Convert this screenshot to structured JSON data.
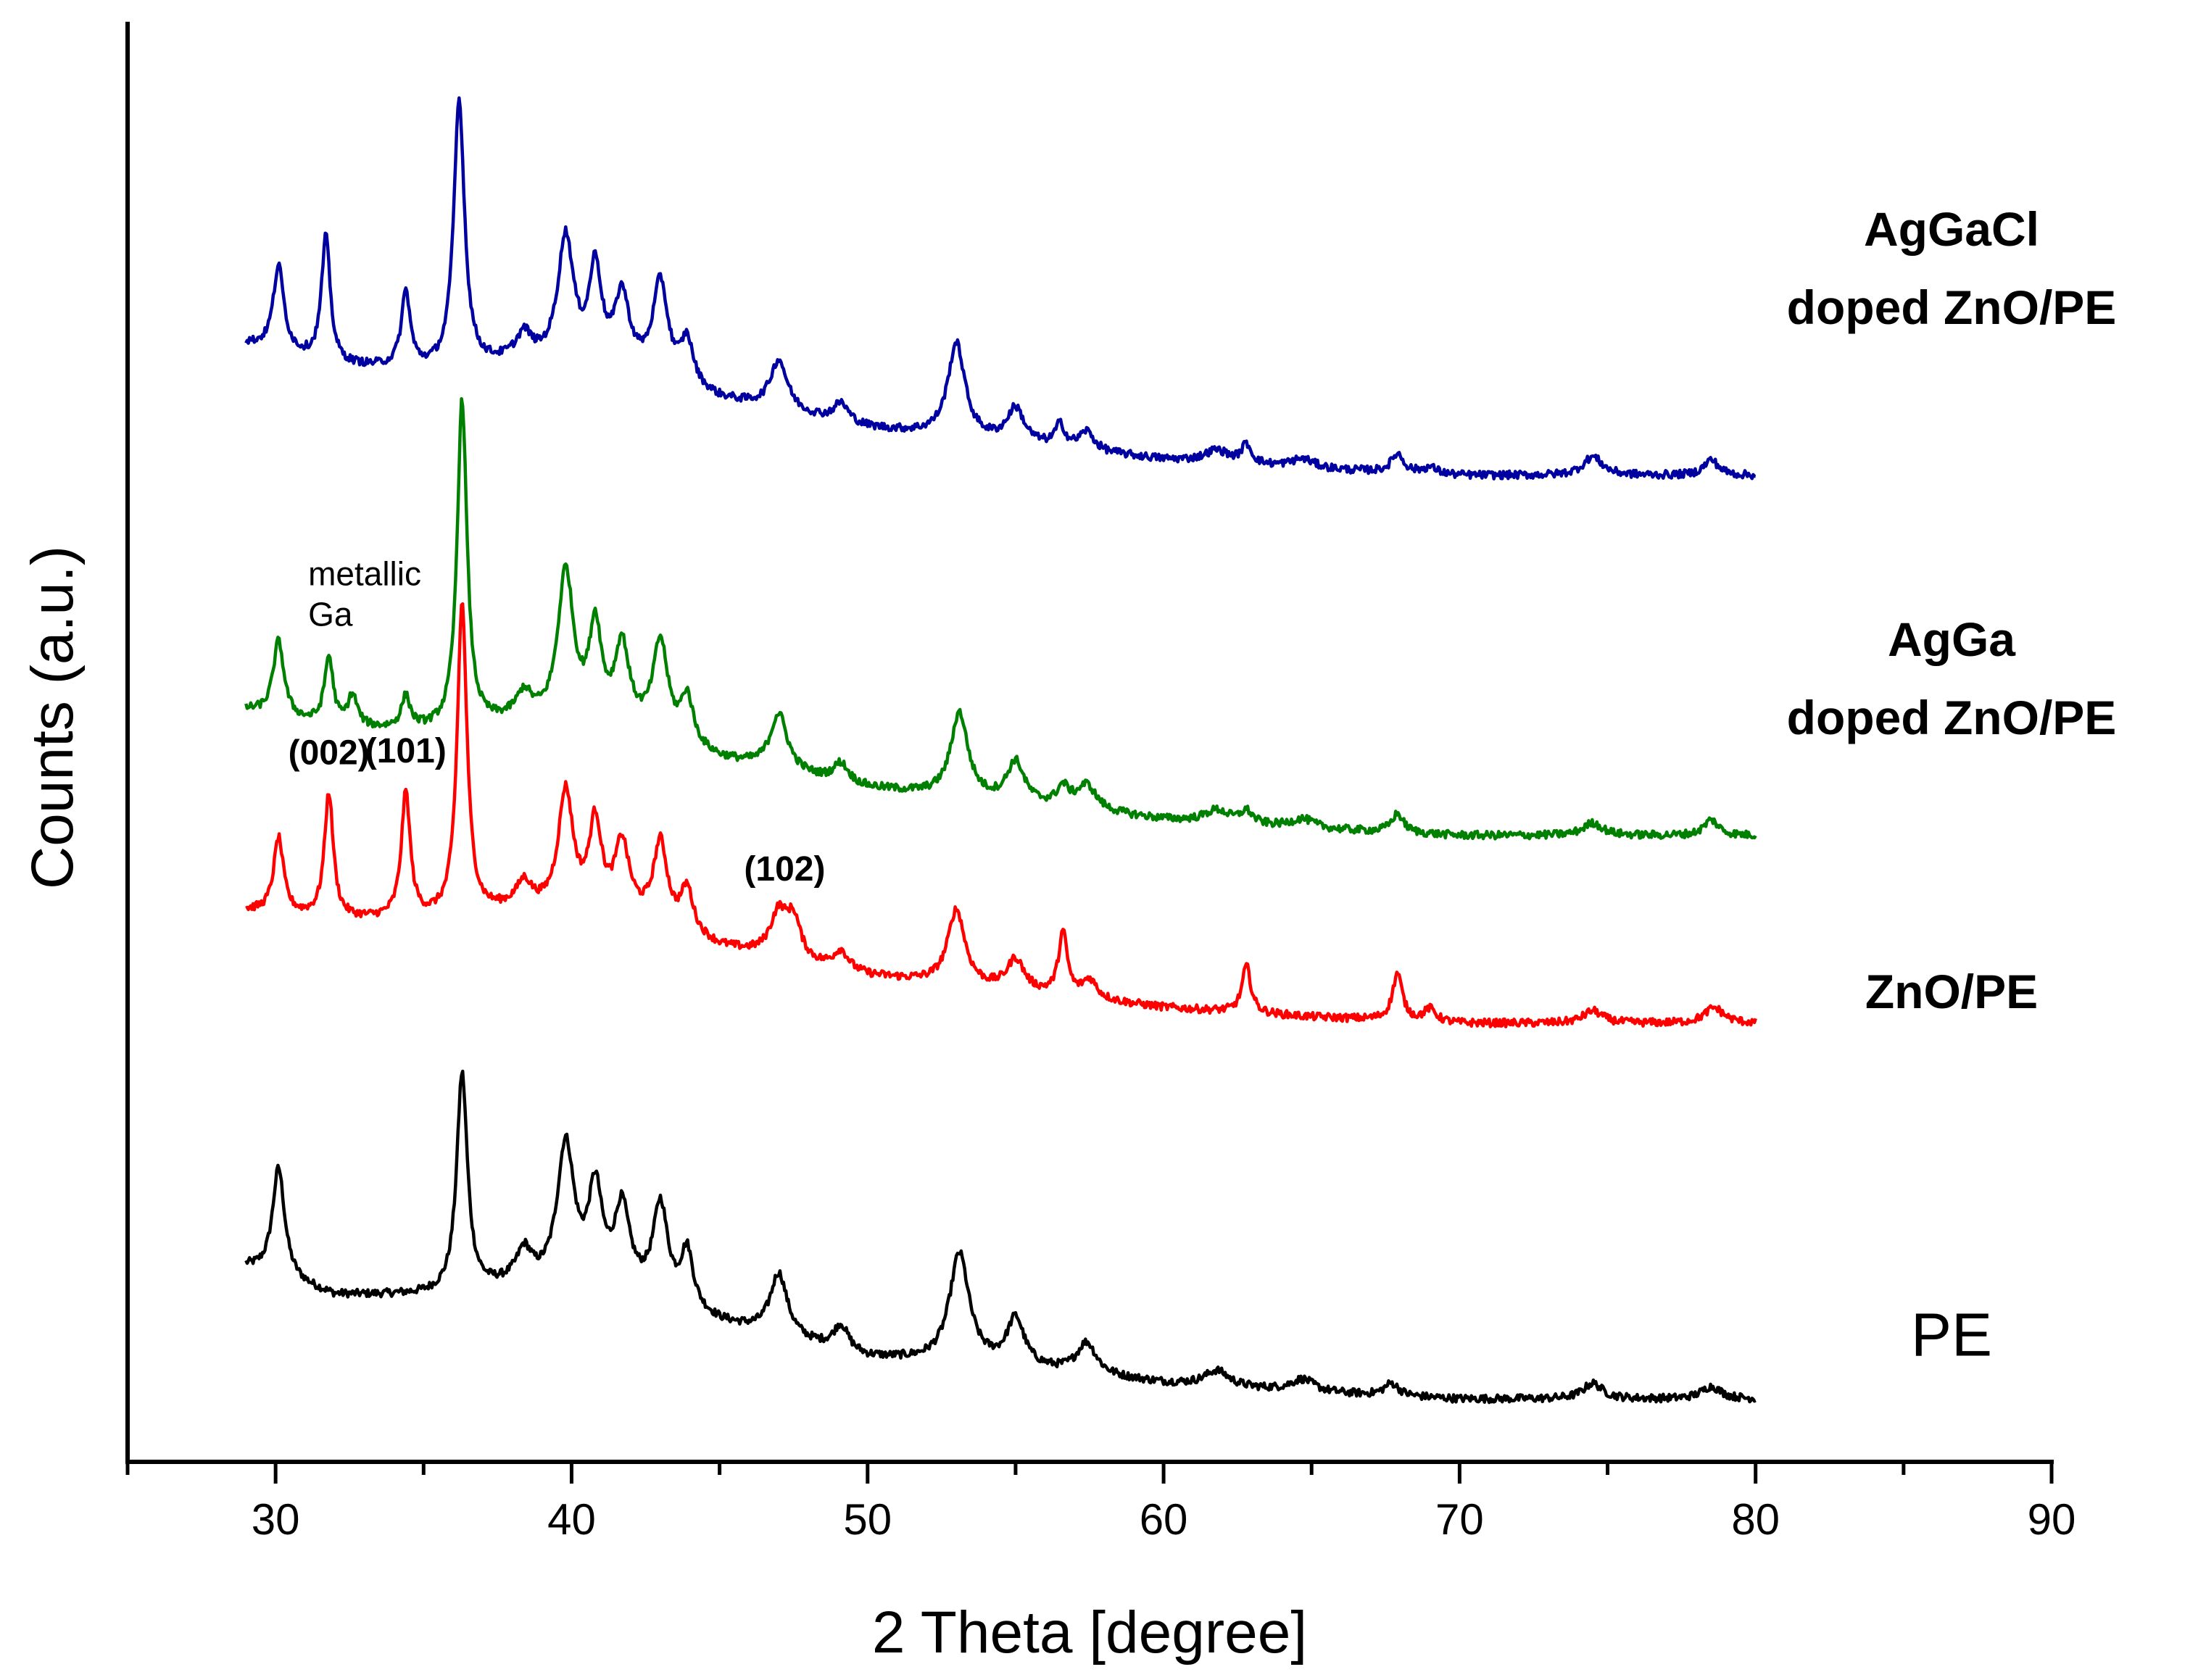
{
  "chart_data": {
    "type": "line",
    "title": "",
    "xlabel": "2 Theta [degree]",
    "ylabel": "Counts (a.u.)",
    "xlim": [
      25,
      90
    ],
    "ylim": [
      0,
      4.6
    ],
    "x_ticks": [
      30,
      40,
      50,
      60,
      70,
      80,
      90
    ],
    "x_tick_labels": [
      "30",
      "40",
      "50",
      "60",
      "70",
      "80",
      "90"
    ],
    "y_ticks_shown": false,
    "grid": false,
    "x_range_of_data": [
      29,
      80
    ],
    "series": [
      {
        "name": "PE",
        "label_lines": [
          "PE"
        ],
        "label_bold": false,
        "color": "#000000",
        "offset": 0.2,
        "baseline": [
          [
            29,
            0.42
          ],
          [
            32,
            0.33
          ],
          [
            36,
            0.33
          ],
          [
            38,
            0.36
          ],
          [
            42,
            0.34
          ],
          [
            45,
            0.24
          ],
          [
            50,
            0.13
          ],
          [
            55,
            0.1
          ],
          [
            60,
            0.05
          ],
          [
            65,
            0.02
          ],
          [
            70,
            0.0
          ],
          [
            75,
            0.0
          ],
          [
            80,
            0.0
          ]
        ],
        "peaks": [
          [
            30.1,
            0.35,
            0.25
          ],
          [
            36.3,
            0.7,
            0.22
          ],
          [
            38.4,
            0.1,
            0.3
          ],
          [
            39.8,
            0.45,
            0.35
          ],
          [
            40.8,
            0.3,
            0.28
          ],
          [
            41.7,
            0.25,
            0.3
          ],
          [
            43.0,
            0.3,
            0.3
          ],
          [
            43.9,
            0.18,
            0.25
          ],
          [
            47.0,
            0.2,
            0.35
          ],
          [
            49.1,
            0.08,
            0.3
          ],
          [
            53.1,
            0.35,
            0.4
          ],
          [
            55.0,
            0.15,
            0.35
          ],
          [
            57.4,
            0.1,
            0.4
          ],
          [
            61.8,
            0.05,
            0.5
          ],
          [
            64.7,
            0.04,
            0.5
          ],
          [
            67.7,
            0.04,
            0.3
          ],
          [
            74.5,
            0.05,
            0.4
          ],
          [
            78.5,
            0.04,
            0.4
          ]
        ]
      },
      {
        "name": "ZnO/PE",
        "label_lines": [
          "ZnO/PE"
        ],
        "label_bold": true,
        "color": "#ff0000",
        "offset": 1.4,
        "baseline": [
          [
            29,
            0.36
          ],
          [
            32,
            0.33
          ],
          [
            36,
            0.33
          ],
          [
            38,
            0.36
          ],
          [
            42,
            0.34
          ],
          [
            45,
            0.24
          ],
          [
            50,
            0.15
          ],
          [
            55,
            0.1
          ],
          [
            60,
            0.05
          ],
          [
            65,
            0.02
          ],
          [
            70,
            0.0
          ],
          [
            75,
            0.0
          ],
          [
            80,
            0.0
          ]
        ],
        "peaks": [
          [
            30.1,
            0.24,
            0.2
          ],
          [
            31.8,
            0.4,
            0.18
          ],
          [
            34.4,
            0.4,
            0.18
          ],
          [
            36.3,
            1.0,
            0.2
          ],
          [
            38.4,
            0.08,
            0.3
          ],
          [
            39.8,
            0.38,
            0.3
          ],
          [
            40.8,
            0.28,
            0.25
          ],
          [
            41.7,
            0.22,
            0.28
          ],
          [
            43.0,
            0.26,
            0.28
          ],
          [
            43.9,
            0.14,
            0.25
          ],
          [
            47.0,
            0.14,
            0.35
          ],
          [
            47.5,
            0.12,
            0.28
          ],
          [
            49.1,
            0.06,
            0.3
          ],
          [
            53.0,
            0.24,
            0.35
          ],
          [
            55.0,
            0.1,
            0.35
          ],
          [
            56.6,
            0.2,
            0.18
          ],
          [
            57.5,
            0.06,
            0.3
          ],
          [
            62.8,
            0.15,
            0.18
          ],
          [
            67.9,
            0.15,
            0.2
          ],
          [
            69.0,
            0.04,
            0.25
          ],
          [
            74.5,
            0.04,
            0.4
          ],
          [
            78.6,
            0.05,
            0.4
          ]
        ]
      },
      {
        "name": "AgGa doped ZnO/PE",
        "label_lines": [
          "AgGa",
          "doped ZnO/PE"
        ],
        "label_bold": true,
        "color": "#008000",
        "offset": 2.0,
        "baseline": [
          [
            29,
            0.4
          ],
          [
            32,
            0.34
          ],
          [
            36,
            0.33
          ],
          [
            38,
            0.36
          ],
          [
            42,
            0.34
          ],
          [
            45,
            0.24
          ],
          [
            50,
            0.15
          ],
          [
            55,
            0.1
          ],
          [
            60,
            0.05
          ],
          [
            65,
            0.02
          ],
          [
            70,
            0.0
          ],
          [
            75,
            0.0
          ],
          [
            80,
            0.0
          ]
        ],
        "peaks": [
          [
            30.1,
            0.24,
            0.22
          ],
          [
            31.8,
            0.22,
            0.18
          ],
          [
            32.6,
            0.1,
            0.2
          ],
          [
            34.4,
            0.1,
            0.18
          ],
          [
            36.3,
            1.05,
            0.2
          ],
          [
            38.4,
            0.08,
            0.3
          ],
          [
            39.8,
            0.48,
            0.32
          ],
          [
            40.8,
            0.3,
            0.25
          ],
          [
            41.7,
            0.25,
            0.28
          ],
          [
            43.0,
            0.3,
            0.3
          ],
          [
            43.9,
            0.15,
            0.25
          ],
          [
            47.0,
            0.18,
            0.35
          ],
          [
            49.1,
            0.06,
            0.3
          ],
          [
            53.1,
            0.27,
            0.35
          ],
          [
            55.0,
            0.13,
            0.35
          ],
          [
            56.6,
            0.06,
            0.25
          ],
          [
            57.4,
            0.08,
            0.4
          ],
          [
            61.8,
            0.04,
            0.5
          ],
          [
            62.8,
            0.04,
            0.25
          ],
          [
            64.7,
            0.03,
            0.5
          ],
          [
            67.9,
            0.06,
            0.25
          ],
          [
            74.5,
            0.04,
            0.4
          ],
          [
            78.5,
            0.05,
            0.3
          ]
        ]
      },
      {
        "name": "AgGaCl doped ZnO/PE",
        "label_lines": [
          "AgGaCl",
          "doped ZnO/PE"
        ],
        "label_bold": true,
        "color": "#0000a0",
        "offset": 3.15,
        "baseline": [
          [
            29,
            0.42
          ],
          [
            32,
            0.35
          ],
          [
            36,
            0.33
          ],
          [
            38,
            0.36
          ],
          [
            42,
            0.34
          ],
          [
            45,
            0.24
          ],
          [
            50,
            0.15
          ],
          [
            55,
            0.1
          ],
          [
            60,
            0.05
          ],
          [
            65,
            0.02
          ],
          [
            70,
            0.0
          ],
          [
            75,
            0.0
          ],
          [
            80,
            0.0
          ]
        ],
        "peaks": [
          [
            30.1,
            0.27,
            0.22
          ],
          [
            31.7,
            0.4,
            0.18
          ],
          [
            34.4,
            0.24,
            0.18
          ],
          [
            36.2,
            0.86,
            0.22
          ],
          [
            38.4,
            0.08,
            0.3
          ],
          [
            39.8,
            0.4,
            0.32
          ],
          [
            40.8,
            0.3,
            0.25
          ],
          [
            41.7,
            0.22,
            0.28
          ],
          [
            43.0,
            0.3,
            0.3
          ],
          [
            43.9,
            0.14,
            0.25
          ],
          [
            47.0,
            0.16,
            0.35
          ],
          [
            49.1,
            0.06,
            0.3
          ],
          [
            53.0,
            0.3,
            0.35
          ],
          [
            55.0,
            0.11,
            0.35
          ],
          [
            56.5,
            0.07,
            0.2
          ],
          [
            57.4,
            0.06,
            0.3
          ],
          [
            61.8,
            0.04,
            0.5
          ],
          [
            62.8,
            0.06,
            0.2
          ],
          [
            64.7,
            0.03,
            0.5
          ],
          [
            67.9,
            0.06,
            0.25
          ],
          [
            69.0,
            0.02,
            0.3
          ],
          [
            74.5,
            0.06,
            0.4
          ],
          [
            78.5,
            0.05,
            0.3
          ]
        ]
      }
    ],
    "annotations": [
      {
        "text": "(002)",
        "x": 31.8,
        "series": "ZnO/PE",
        "bold": true
      },
      {
        "text": "(101)",
        "x": 34.4,
        "series": "ZnO/PE",
        "bold": true
      },
      {
        "text": "(102)",
        "x": 47.2,
        "series": "ZnO/PE",
        "bold": true
      },
      {
        "text_lines": [
          "metallic",
          "Ga"
        ],
        "x": 32.6,
        "series": "AgGa doped ZnO/PE",
        "bold": false
      }
    ]
  }
}
